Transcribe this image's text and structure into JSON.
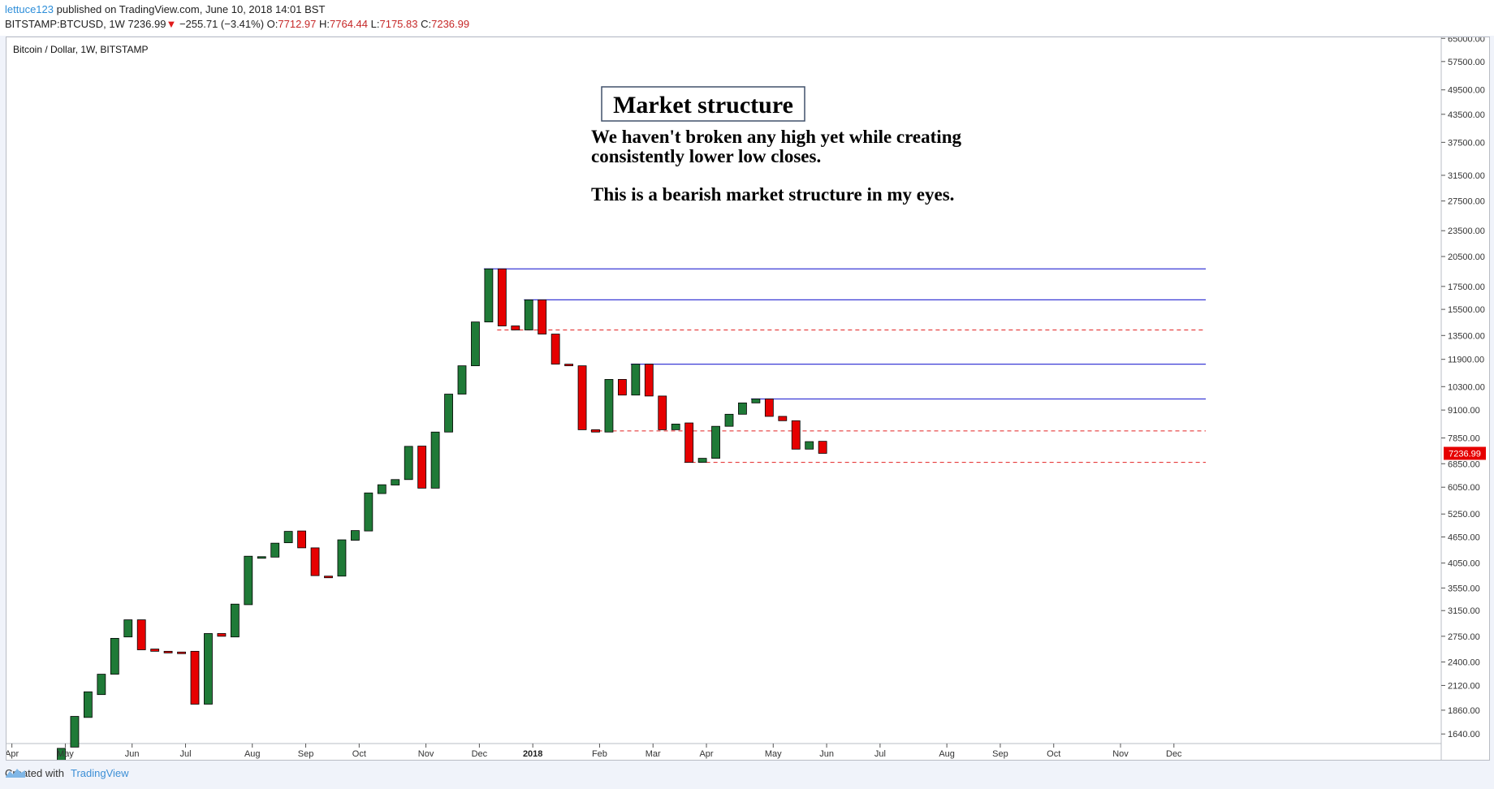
{
  "header": {
    "author": "lettuce123",
    "published": "published on TradingView.com, June 10, 2018 14:01 BST",
    "symbol": "BITSTAMP:BTCUSD, 1W",
    "last": "7236.99",
    "change_arrow": "▼",
    "change": "−255.71 (−3.41%)",
    "o_label": "O:",
    "o_value": "7712.97",
    "h_label": "H:",
    "h_value": "7764.44",
    "l_label": "L:",
    "l_value": "7175.83",
    "c_label": "C:",
    "c_value": "7236.99"
  },
  "footer": {
    "created_with": "Created with",
    "brand": "TradingView"
  },
  "colors": {
    "up": "#1f7a37",
    "down": "#e60000",
    "resistance": "#3a3ad6",
    "support": "#e22222",
    "price_badge": "#e60000"
  },
  "chart_data": {
    "type": "candlestick",
    "title": "Bitcoin / Dollar, 1W, BITSTAMP",
    "y_scale": "log",
    "ylim": [
      1500,
      70000
    ],
    "y_ticks": [
      "65000.00",
      "57500.00",
      "49500.00",
      "43500.00",
      "37500.00",
      "31500.00",
      "27500.00",
      "23500.00",
      "20500.00",
      "17500.00",
      "15500.00",
      "13500.00",
      "11900.00",
      "10300.00",
      "9100.00",
      "7850.00",
      "6850.00",
      "6050.00",
      "5250.00",
      "4650.00",
      "4050.00",
      "3550.00",
      "3150.00",
      "2750.00",
      "2400.00",
      "2120.00",
      "1860.00",
      "1640.00"
    ],
    "x_labels": [
      {
        "label": "Apr",
        "week": -3.7
      },
      {
        "label": "May",
        "week": 0.3
      },
      {
        "label": "Jun",
        "week": 5.3
      },
      {
        "label": "Jul",
        "week": 9.3
      },
      {
        "label": "Aug",
        "week": 14.3
      },
      {
        "label": "Sep",
        "week": 18.3
      },
      {
        "label": "Oct",
        "week": 22.3
      },
      {
        "label": "Nov",
        "week": 27.3
      },
      {
        "label": "Dec",
        "week": 31.3
      },
      {
        "label": "2018",
        "week": 35.3,
        "bold": true
      },
      {
        "label": "Feb",
        "week": 40.3
      },
      {
        "label": "Mar",
        "week": 44.3
      },
      {
        "label": "Apr",
        "week": 48.3
      },
      {
        "label": "May",
        "week": 53.3
      },
      {
        "label": "Jun",
        "week": 57.3
      },
      {
        "label": "Jul",
        "week": 61.3
      },
      {
        "label": "Aug",
        "week": 66.3
      },
      {
        "label": "Sep",
        "week": 70.3
      },
      {
        "label": "Oct",
        "week": 74.3
      },
      {
        "label": "Nov",
        "week": 79.3
      },
      {
        "label": "Dec",
        "week": 83.3
      }
    ],
    "candles": [
      {
        "o": 1370,
        "c": 1520
      },
      {
        "o": 1530,
        "c": 1800
      },
      {
        "o": 1790,
        "c": 2050
      },
      {
        "o": 2020,
        "c": 2250
      },
      {
        "o": 2250,
        "c": 2720
      },
      {
        "o": 2740,
        "c": 3000
      },
      {
        "o": 3000,
        "c": 2560
      },
      {
        "o": 2570,
        "c": 2540
      },
      {
        "o": 2540,
        "c": 2520
      },
      {
        "o": 2530,
        "c": 2520
      },
      {
        "o": 2540,
        "c": 1920
      },
      {
        "o": 1920,
        "c": 2790
      },
      {
        "o": 2790,
        "c": 2750
      },
      {
        "o": 2740,
        "c": 3260
      },
      {
        "o": 3250,
        "c": 4200
      },
      {
        "o": 4170,
        "c": 4190
      },
      {
        "o": 4180,
        "c": 4500
      },
      {
        "o": 4510,
        "c": 4790
      },
      {
        "o": 4800,
        "c": 4390
      },
      {
        "o": 4390,
        "c": 3790
      },
      {
        "o": 3780,
        "c": 3770
      },
      {
        "o": 3780,
        "c": 4580
      },
      {
        "o": 4570,
        "c": 4810
      },
      {
        "o": 4800,
        "c": 5870
      },
      {
        "o": 5850,
        "c": 6130
      },
      {
        "o": 6120,
        "c": 6300
      },
      {
        "o": 6300,
        "c": 7510
      },
      {
        "o": 7520,
        "c": 6020
      },
      {
        "o": 6020,
        "c": 8100
      },
      {
        "o": 8100,
        "c": 9900
      },
      {
        "o": 9900,
        "c": 11500
      },
      {
        "o": 11500,
        "c": 14500
      },
      {
        "o": 14500,
        "c": 19200
      },
      {
        "o": 19200,
        "c": 14200
      },
      {
        "o": 14200,
        "c": 13900
      },
      {
        "o": 13900,
        "c": 16300
      },
      {
        "o": 16300,
        "c": 13600
      },
      {
        "o": 13600,
        "c": 11600
      },
      {
        "o": 11600,
        "c": 11500
      },
      {
        "o": 11500,
        "c": 8200
      },
      {
        "o": 8200,
        "c": 8100
      },
      {
        "o": 8100,
        "c": 10700
      },
      {
        "o": 10700,
        "c": 9850
      },
      {
        "o": 9850,
        "c": 11600
      },
      {
        "o": 11600,
        "c": 9800
      },
      {
        "o": 9800,
        "c": 8200
      },
      {
        "o": 8200,
        "c": 8450
      },
      {
        "o": 8500,
        "c": 6900
      },
      {
        "o": 6900,
        "c": 7050
      },
      {
        "o": 7050,
        "c": 8350
      },
      {
        "o": 8350,
        "c": 8900
      },
      {
        "o": 8900,
        "c": 9450
      },
      {
        "o": 9450,
        "c": 9650
      },
      {
        "o": 9650,
        "c": 8800
      },
      {
        "o": 8800,
        "c": 8600
      },
      {
        "o": 8600,
        "c": 7400
      },
      {
        "o": 7400,
        "c": 7700
      },
      {
        "o": 7713,
        "c": 7237
      }
    ],
    "levels": [
      {
        "price": 19200,
        "style": "resistance",
        "from_week": 32
      },
      {
        "price": 16300,
        "style": "resistance",
        "from_week": 35
      },
      {
        "price": 13900,
        "style": "support",
        "from_week": 33
      },
      {
        "price": 11600,
        "style": "resistance",
        "from_week": 43
      },
      {
        "price": 9650,
        "style": "resistance",
        "from_week": 52
      },
      {
        "price": 8150,
        "style": "support",
        "from_week": 40
      },
      {
        "price": 6900,
        "style": "support",
        "from_week": 47
      }
    ],
    "last_price": "7236.99",
    "annotation": {
      "title": "Market structure",
      "line1": "We haven't broken any high yet while creating",
      "line2": "consistently lower low closes.",
      "line3": "This is a bearish market structure in my eyes."
    }
  }
}
